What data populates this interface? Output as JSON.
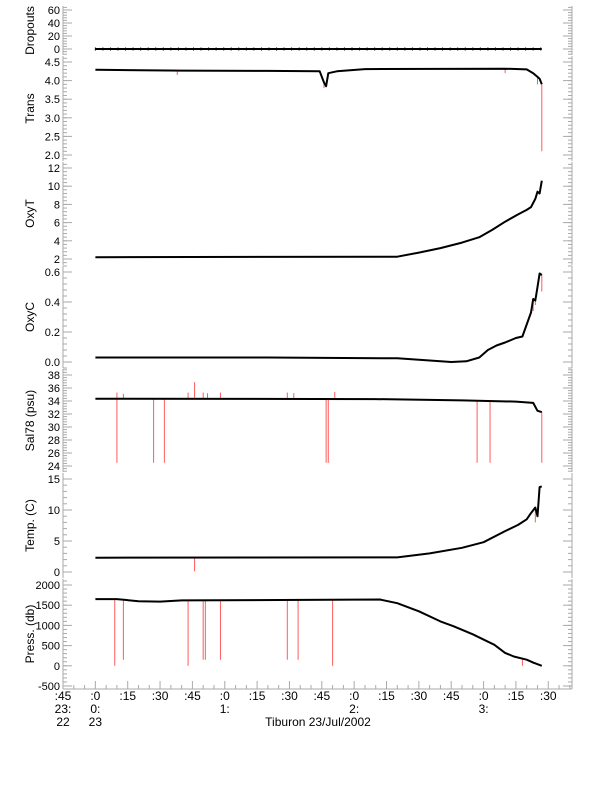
{
  "chart_data": {
    "type": "line",
    "title": "Tiburon 23/Jul/2002",
    "xlabel": "Tiburon 23/Jul/2002",
    "x_units": "minutes after 0:00 on 23 Jul 2002",
    "xlim": [
      -15,
      221
    ],
    "x_ticks": [
      {
        "t": -15,
        "label": ":45"
      },
      {
        "t": 0,
        "label": ":0"
      },
      {
        "t": 15,
        "label": ":15"
      },
      {
        "t": 30,
        "label": ":30"
      },
      {
        "t": 45,
        "label": ":45"
      },
      {
        "t": 60,
        "label": ":0"
      },
      {
        "t": 75,
        "label": ":15"
      },
      {
        "t": 90,
        "label": ":30"
      },
      {
        "t": 105,
        "label": ":45"
      },
      {
        "t": 120,
        "label": ":0"
      },
      {
        "t": 135,
        "label": ":15"
      },
      {
        "t": 150,
        "label": ":30"
      },
      {
        "t": 165,
        "label": ":45"
      },
      {
        "t": 180,
        "label": ":0"
      },
      {
        "t": 195,
        "label": ":15"
      },
      {
        "t": 210,
        "label": ":30"
      }
    ],
    "hour_labels": [
      {
        "t": -15,
        "label": "23:"
      },
      {
        "t": 0,
        "label": "0:"
      },
      {
        "t": 60,
        "label": "1:"
      },
      {
        "t": 120,
        "label": "2:"
      },
      {
        "t": 180,
        "label": "3:"
      }
    ],
    "day_labels": [
      {
        "t": -15,
        "label": "22"
      },
      {
        "t": 0,
        "label": "23"
      }
    ],
    "colors": {
      "line": "#000000",
      "raw": "#ff3333",
      "axis": "#aaaaaa"
    },
    "panels": [
      {
        "ylabel": "Dropouts",
        "ylim": [
          -8,
          66
        ],
        "ticks": [
          0,
          20,
          40,
          60
        ],
        "labels": [
          "0",
          "20",
          "40",
          "60"
        ],
        "series": [
          [
            0,
            0
          ],
          [
            207,
            0
          ]
        ],
        "spikes": []
      },
      {
        "ylabel": "Trans",
        "ylim": [
          1.95,
          4.56
        ],
        "ticks": [
          2.0,
          2.5,
          3.0,
          3.5,
          4.0,
          4.5
        ],
        "labels": [
          "2.0",
          "2.5",
          "3.0",
          "3.5",
          "4.0",
          "4.5"
        ],
        "series": [
          [
            0,
            4.29
          ],
          [
            40,
            4.27
          ],
          [
            80,
            4.26
          ],
          [
            104,
            4.25
          ],
          [
            106,
            3.95
          ],
          [
            107,
            3.85
          ],
          [
            108,
            4.2
          ],
          [
            112,
            4.25
          ],
          [
            125,
            4.31
          ],
          [
            190,
            4.32
          ],
          [
            200,
            4.3
          ],
          [
            203,
            4.2
          ],
          [
            205,
            4.1
          ],
          [
            206,
            4.05
          ],
          [
            207,
            3.9
          ]
        ],
        "spikes": [
          [
            38,
            4.15
          ],
          [
            106,
            3.8
          ],
          [
            190,
            4.2
          ],
          [
            205,
            3.9
          ],
          [
            207,
            2.1
          ]
        ]
      },
      {
        "ylabel": "OxyT",
        "ylim": [
          1.7,
          12.3
        ],
        "ticks": [
          2,
          4,
          6,
          8,
          10,
          12
        ],
        "labels": [
          "2",
          "4",
          "6",
          "8",
          "10",
          "12"
        ],
        "series": [
          [
            0,
            2.2
          ],
          [
            140,
            2.25
          ],
          [
            150,
            2.7
          ],
          [
            160,
            3.2
          ],
          [
            170,
            3.8
          ],
          [
            178,
            4.4
          ],
          [
            184,
            5.2
          ],
          [
            190,
            6.1
          ],
          [
            196,
            6.9
          ],
          [
            200,
            7.4
          ],
          [
            202,
            7.7
          ],
          [
            204,
            8.6
          ],
          [
            205,
            9.4
          ],
          [
            206,
            9.2
          ],
          [
            207,
            10.6
          ]
        ],
        "spikes": []
      },
      {
        "ylabel": "OxyC",
        "ylim": [
          -0.02,
          0.63
        ],
        "ticks": [
          0.0,
          0.2,
          0.4,
          0.6
        ],
        "labels": [
          "0.0",
          "0.2",
          "0.4",
          "0.6"
        ],
        "series": [
          [
            0,
            0.03
          ],
          [
            80,
            0.03
          ],
          [
            140,
            0.025
          ],
          [
            155,
            0.01
          ],
          [
            165,
            0.0
          ],
          [
            172,
            0.005
          ],
          [
            178,
            0.03
          ],
          [
            182,
            0.08
          ],
          [
            186,
            0.11
          ],
          [
            190,
            0.13
          ],
          [
            195,
            0.16
          ],
          [
            198,
            0.17
          ],
          [
            200,
            0.25
          ],
          [
            202,
            0.33
          ],
          [
            203,
            0.42
          ],
          [
            204,
            0.41
          ],
          [
            205,
            0.5
          ],
          [
            206,
            0.59
          ],
          [
            207,
            0.58
          ]
        ],
        "spikes": [
          [
            203,
            0.34
          ],
          [
            204,
            0.38
          ],
          [
            207,
            0.47
          ]
        ]
      },
      {
        "ylabel": "Sal78 (psu)",
        "ylim": [
          23.5,
          38.6
        ],
        "ticks": [
          24,
          26,
          28,
          30,
          32,
          34,
          36,
          38
        ],
        "labels": [
          "24",
          "26",
          "28",
          "30",
          "32",
          "34",
          "36",
          "38"
        ],
        "series": [
          [
            0,
            34.35
          ],
          [
            130,
            34.3
          ],
          [
            170,
            34.1
          ],
          [
            195,
            33.9
          ],
          [
            203,
            33.7
          ],
          [
            205,
            32.5
          ],
          [
            207,
            32.3
          ]
        ],
        "spikes": [
          [
            10,
            24.5
          ],
          [
            10,
            35.3
          ],
          [
            13,
            35.1
          ],
          [
            27,
            24.5
          ],
          [
            32,
            24.5
          ],
          [
            43,
            35.3
          ],
          [
            46,
            36.9
          ],
          [
            50,
            35.3
          ],
          [
            52,
            35.2
          ],
          [
            58,
            35.3
          ],
          [
            89,
            35.3
          ],
          [
            92,
            35.2
          ],
          [
            107,
            24.5
          ],
          [
            108,
            24.5
          ],
          [
            111,
            35.4
          ],
          [
            177,
            24.5
          ],
          [
            183,
            24.5
          ],
          [
            207,
            24.5
          ]
        ]
      },
      {
        "ylabel": "Temp. (C)",
        "ylim": [
          -0.5,
          15.5
        ],
        "ticks": [
          0,
          5,
          10,
          15
        ],
        "labels": [
          "0",
          "5",
          "10",
          "15"
        ],
        "series": [
          [
            0,
            2.3
          ],
          [
            140,
            2.35
          ],
          [
            155,
            3.0
          ],
          [
            170,
            3.9
          ],
          [
            180,
            4.8
          ],
          [
            190,
            6.6
          ],
          [
            196,
            7.6
          ],
          [
            200,
            8.5
          ],
          [
            202,
            9.5
          ],
          [
            204,
            10.4
          ],
          [
            205,
            9.0
          ],
          [
            206,
            13.7
          ],
          [
            207,
            13.8
          ]
        ],
        "spikes": [
          [
            46,
            0.1
          ],
          [
            204,
            8.0
          ]
        ]
      },
      {
        "ylabel": "Press. (db)",
        "ylim": [
          -600,
          2100
        ],
        "ticks": [
          -500,
          0,
          500,
          1000,
          1500,
          2000
        ],
        "labels": [
          "-500",
          "0",
          "500",
          "1000",
          "1500",
          "2000"
        ],
        "series": [
          [
            0,
            1650
          ],
          [
            10,
            1650
          ],
          [
            20,
            1600
          ],
          [
            30,
            1590
          ],
          [
            40,
            1620
          ],
          [
            132,
            1640
          ],
          [
            140,
            1550
          ],
          [
            150,
            1350
          ],
          [
            160,
            1100
          ],
          [
            166,
            980
          ],
          [
            175,
            780
          ],
          [
            185,
            520
          ],
          [
            190,
            320
          ],
          [
            194,
            230
          ],
          [
            200,
            150
          ],
          [
            203,
            80
          ],
          [
            207,
            0
          ]
        ],
        "spikes": [
          [
            9,
            0
          ],
          [
            13,
            150
          ],
          [
            43,
            0
          ],
          [
            50,
            150
          ],
          [
            51,
            150
          ],
          [
            58,
            150
          ],
          [
            89,
            150
          ],
          [
            94,
            150
          ],
          [
            110,
            0
          ],
          [
            198,
            0
          ],
          [
            203,
            50
          ]
        ]
      }
    ]
  }
}
